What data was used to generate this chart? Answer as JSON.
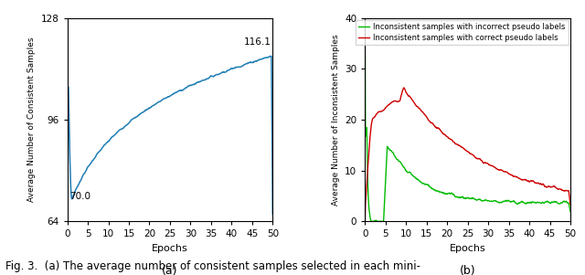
{
  "left_plot": {
    "ylabel": "Average Number of Consistent Samples",
    "xlabel": "Epochs",
    "xlabel_label": "(a)",
    "xlim": [
      0,
      50
    ],
    "ylim": [
      64,
      128
    ],
    "yticks": [
      64,
      96,
      128
    ],
    "xticks": [
      0,
      5,
      10,
      15,
      20,
      25,
      30,
      35,
      40,
      45,
      50
    ],
    "line_color": "#1e7db4",
    "annotation_start": "70.0",
    "annotation_end": "116.1"
  },
  "right_plot": {
    "ylabel": "Average Number of Inconsistent Samples",
    "xlabel": "Epochs",
    "xlabel_label": "(b)",
    "xlim": [
      0,
      50
    ],
    "ylim": [
      0,
      40
    ],
    "yticks": [
      0,
      10,
      20,
      30,
      40
    ],
    "xticks": [
      0,
      5,
      10,
      15,
      20,
      25,
      30,
      35,
      40,
      45,
      50
    ],
    "green_color": "#00bb00",
    "red_color": "#cc0000",
    "legend_green": "Inconsistent samples with incorrect pseudo labels",
    "legend_red": "Inconsistent samples with correct pseudo labels"
  },
  "fig_caption": "Fig. 3.  (a) The average number of consistent samples selected in each mini-",
  "background_color": "#ffffff"
}
